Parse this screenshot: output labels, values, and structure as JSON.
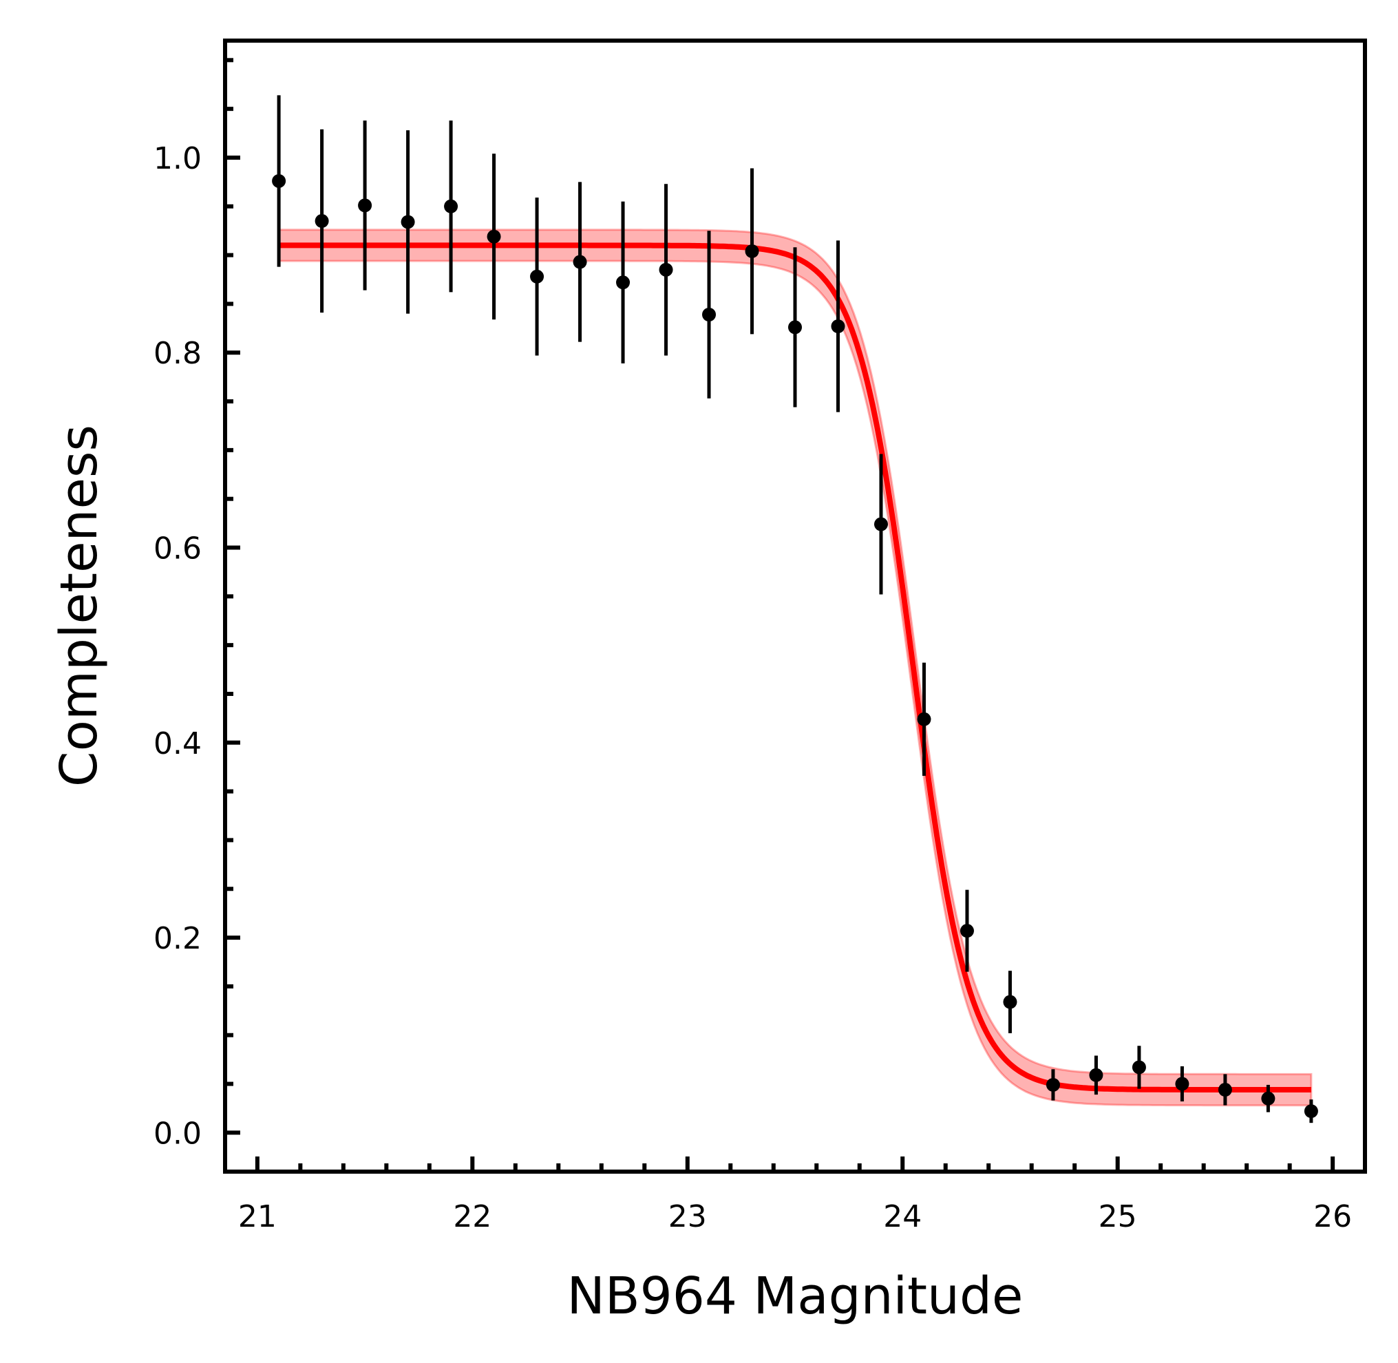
{
  "chart_data": {
    "type": "scatter",
    "title": "",
    "xlabel": "NB964 Magnitude",
    "ylabel": "Completeness",
    "xlim": [
      20.85,
      26.15
    ],
    "ylim": [
      -0.04,
      1.12
    ],
    "xticks": [
      21,
      22,
      23,
      24,
      25,
      26
    ],
    "xtick_labels": [
      "21",
      "22",
      "23",
      "24",
      "25",
      "26"
    ],
    "xminor_ticks": [
      21.2,
      21.4,
      21.6,
      21.8,
      22.2,
      22.4,
      22.6,
      22.8,
      23.2,
      23.4,
      23.6,
      23.8,
      24.2,
      24.4,
      24.6,
      24.8,
      25.2,
      25.4,
      25.6,
      25.8
    ],
    "yticks": [
      0.0,
      0.2,
      0.4,
      0.6,
      0.8,
      1.0
    ],
    "ytick_labels": [
      "0.0",
      "0.2",
      "0.4",
      "0.6",
      "0.8",
      "1.0"
    ],
    "yminor_ticks": [
      0.05,
      0.1,
      0.15,
      0.25,
      0.3,
      0.35,
      0.45,
      0.5,
      0.55,
      0.65,
      0.7,
      0.75,
      0.85,
      0.9,
      0.95,
      1.05,
      1.1
    ],
    "grid": false,
    "legend": "none",
    "series": [
      {
        "kind": "errorbar",
        "color": "#000000",
        "x": [
          21.1,
          21.3,
          21.5,
          21.7,
          21.9,
          22.1,
          22.3,
          22.5,
          22.7,
          22.9,
          23.1,
          23.3,
          23.5,
          23.7,
          23.9,
          24.1,
          24.3,
          24.5,
          24.7,
          24.9,
          25.1,
          25.3,
          25.5,
          25.7,
          25.9
        ],
        "y": [
          0.976,
          0.935,
          0.951,
          0.934,
          0.95,
          0.919,
          0.878,
          0.893,
          0.872,
          0.885,
          0.839,
          0.904,
          0.826,
          0.827,
          0.624,
          0.424,
          0.207,
          0.134,
          0.049,
          0.059,
          0.067,
          0.05,
          0.044,
          0.035,
          0.022
        ],
        "yerr": [
          0.088,
          0.094,
          0.087,
          0.094,
          0.088,
          0.085,
          0.081,
          0.082,
          0.083,
          0.088,
          0.086,
          0.085,
          0.082,
          0.088,
          0.072,
          0.058,
          0.042,
          0.032,
          0.016,
          0.02,
          0.022,
          0.018,
          0.016,
          0.014,
          0.012
        ]
      },
      {
        "kind": "fit",
        "color": "#ff0000",
        "band_color": "#ff0000",
        "model": "sigmoid",
        "upper_level": 0.91,
        "lower_level": 0.044,
        "midpoint": 24.05,
        "width": 0.13,
        "band_halfwidth": 0.016,
        "x_range": [
          21.1,
          25.9
        ]
      }
    ]
  }
}
